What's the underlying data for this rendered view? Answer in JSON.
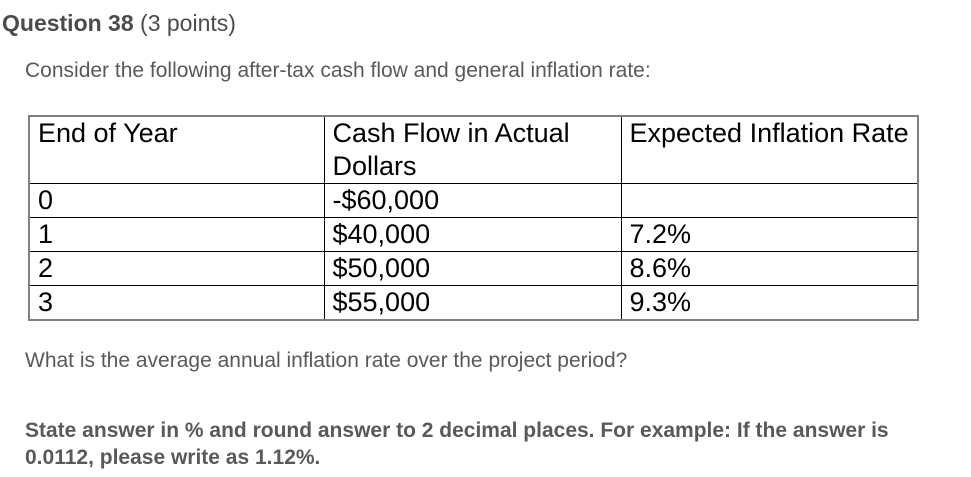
{
  "question": {
    "number_label": "Question 38",
    "points_label": " (3 points)",
    "intro": "Consider the following after-tax cash flow and general inflation rate:",
    "prompt": "What is the average annual inflation rate over the project period?",
    "instruction": "State answer in % and round answer to 2 decimal places. For example: If the answer is 0.0112, please write as 1.12%."
  },
  "table": {
    "headers": [
      "End of Year",
      "Cash Flow in Actual Dollars",
      "Expected Inflation Rate"
    ],
    "rows": [
      [
        "0",
        "-$60,000",
        ""
      ],
      [
        "1",
        "$40,000",
        "7.2%"
      ],
      [
        "2",
        "$50,000",
        "8.6%"
      ],
      [
        "3",
        "$55,000",
        "9.3%"
      ]
    ]
  },
  "colors": {
    "heading_text": "#494c4e",
    "body_text": "#565a5c",
    "table_text": "#000000",
    "table_outer_border": "#808080",
    "table_inner_border": "#000000",
    "background": "#ffffff"
  }
}
